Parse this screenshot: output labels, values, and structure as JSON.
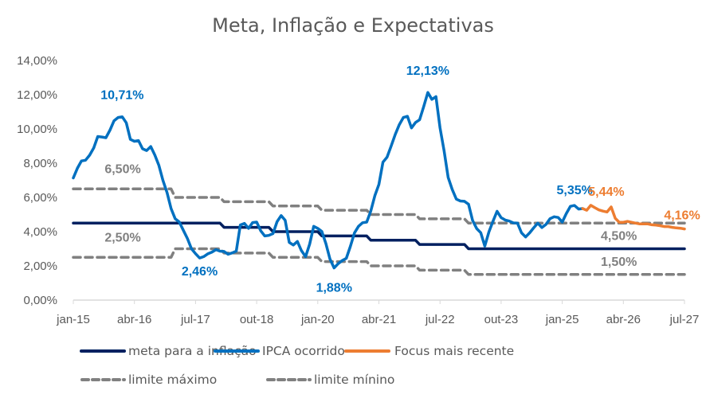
{
  "chart_data": {
    "type": "line",
    "title": "Meta, Inflação e Expectativas",
    "xlabel": "",
    "ylabel": "",
    "x_start": "jan-15",
    "x_end": "jul-27",
    "x_tick_labels": [
      "jan-15",
      "abr-16",
      "jul-17",
      "out-18",
      "jan-20",
      "abr-21",
      "jul-22",
      "out-23",
      "jan-25",
      "abr-26",
      "jul-27"
    ],
    "x_tick_months": [
      0,
      15,
      30,
      45,
      60,
      75,
      90,
      105,
      120,
      135,
      150
    ],
    "ylim": [
      0,
      14
    ],
    "y_tick_values": [
      0,
      2,
      4,
      6,
      8,
      10,
      12,
      14
    ],
    "y_tick_labels": [
      "0,00%",
      "2,00%",
      "4,00%",
      "6,00%",
      "8,00%",
      "10,00%",
      "12,00%",
      "14,00%"
    ],
    "grid": false,
    "legend_position": "bottom",
    "series": [
      {
        "name": "meta para a inflação",
        "color": "#002060",
        "style": "solid",
        "points": [
          [
            0,
            4.5
          ],
          [
            36,
            4.5
          ],
          [
            37,
            4.25
          ],
          [
            48,
            4.25
          ],
          [
            49,
            4.0
          ],
          [
            60,
            4.0
          ],
          [
            61,
            3.75
          ],
          [
            72,
            3.75
          ],
          [
            73,
            3.5
          ],
          [
            84,
            3.5
          ],
          [
            85,
            3.25
          ],
          [
            96,
            3.25
          ],
          [
            97,
            3.0
          ],
          [
            150,
            3.0
          ]
        ]
      },
      {
        "name": "limite máximo",
        "color": "#808080",
        "style": "dashed",
        "points": [
          [
            0,
            6.5
          ],
          [
            24,
            6.5
          ],
          [
            25,
            6.0
          ],
          [
            36,
            6.0
          ],
          [
            37,
            5.75
          ],
          [
            48,
            5.75
          ],
          [
            49,
            5.5
          ],
          [
            60,
            5.5
          ],
          [
            61,
            5.25
          ],
          [
            72,
            5.25
          ],
          [
            73,
            5.0
          ],
          [
            84,
            5.0
          ],
          [
            85,
            4.75
          ],
          [
            96,
            4.75
          ],
          [
            97,
            4.5
          ],
          [
            150,
            4.5
          ]
        ]
      },
      {
        "name": "limite mínino",
        "color": "#808080",
        "style": "dashed",
        "points": [
          [
            0,
            2.5
          ],
          [
            24,
            2.5
          ],
          [
            25,
            3.0
          ],
          [
            36,
            3.0
          ],
          [
            37,
            2.75
          ],
          [
            48,
            2.75
          ],
          [
            49,
            2.5
          ],
          [
            60,
            2.5
          ],
          [
            61,
            2.25
          ],
          [
            72,
            2.25
          ],
          [
            73,
            2.0
          ],
          [
            84,
            2.0
          ],
          [
            85,
            1.75
          ],
          [
            96,
            1.75
          ],
          [
            97,
            1.5
          ],
          [
            150,
            1.5
          ]
        ]
      },
      {
        "name": "IPCA ocorrido",
        "color": "#0070C0",
        "style": "solid",
        "start_month": 0,
        "values": [
          7.14,
          7.7,
          8.13,
          8.17,
          8.47,
          8.89,
          9.56,
          9.53,
          9.49,
          9.93,
          10.48,
          10.67,
          10.71,
          10.36,
          9.39,
          9.28,
          9.32,
          8.84,
          8.74,
          8.97,
          8.48,
          7.87,
          6.99,
          6.29,
          5.35,
          4.76,
          4.57,
          4.08,
          3.6,
          3.0,
          2.71,
          2.46,
          2.54,
          2.7,
          2.8,
          2.95,
          2.86,
          2.84,
          2.68,
          2.76,
          2.86,
          4.39,
          4.48,
          4.19,
          4.53,
          4.56,
          4.05,
          3.75,
          3.78,
          3.89,
          4.58,
          4.94,
          4.66,
          3.37,
          3.22,
          3.43,
          2.89,
          2.54,
          3.27,
          4.31,
          4.19,
          4.01,
          3.3,
          2.4,
          1.88,
          2.13,
          2.31,
          2.44,
          3.14,
          3.92,
          4.31,
          4.52,
          4.56,
          5.2,
          6.1,
          6.76,
          8.06,
          8.35,
          8.99,
          9.68,
          10.25,
          10.67,
          10.74,
          10.06,
          10.38,
          10.54,
          11.3,
          12.13,
          11.73,
          11.89,
          10.07,
          8.73,
          7.17,
          6.47,
          5.9,
          5.79,
          5.77,
          5.6,
          4.65,
          4.18,
          3.94,
          3.16,
          3.99,
          4.61,
          5.19,
          4.82,
          4.68,
          4.62,
          4.51,
          4.5,
          3.93,
          3.69,
          3.93,
          4.23,
          4.5,
          4.24,
          4.42,
          4.76,
          4.87,
          4.83,
          4.56,
          5.06,
          5.48,
          5.53,
          5.32,
          5.35
        ]
      },
      {
        "name": "Focus mais recente",
        "color": "#ED7D31",
        "style": "solid",
        "start_month": 125,
        "values": [
          5.35,
          5.25,
          5.54,
          5.4,
          5.27,
          5.2,
          5.15,
          5.44,
          4.78,
          4.55,
          4.55,
          4.6,
          4.55,
          4.5,
          4.45,
          4.45,
          4.45,
          4.4,
          4.38,
          4.35,
          4.3,
          4.3,
          4.25,
          4.22,
          4.2,
          4.16
        ]
      }
    ],
    "annotations": [
      {
        "text": "10,71%",
        "series": "IPCA ocorrido",
        "color": "#0070C0",
        "month": 12,
        "value": 10.71,
        "placement": "above"
      },
      {
        "text": "2,46%",
        "series": "IPCA ocorrido",
        "color": "#0070C0",
        "month": 31,
        "value": 2.46,
        "placement": "below"
      },
      {
        "text": "1,88%",
        "series": "IPCA ocorrido",
        "color": "#0070C0",
        "month": 64,
        "value": 1.88,
        "placement": "below"
      },
      {
        "text": "12,13%",
        "series": "IPCA ocorrido",
        "color": "#0070C0",
        "month": 87,
        "value": 12.13,
        "placement": "above"
      },
      {
        "text": "5,35%",
        "series": "IPCA ocorrido",
        "color": "#0070C0",
        "month": 125,
        "value": 5.35,
        "placement": "above"
      },
      {
        "text": "5,44%",
        "series": "Focus mais recente",
        "color": "#ED7D31",
        "month": 132,
        "value": 5.44,
        "placement": "above"
      },
      {
        "text": "4,16%",
        "series": "Focus mais recente",
        "color": "#ED7D31",
        "month": 150,
        "value": 4.16,
        "placement": "above"
      },
      {
        "text": "6,50%",
        "series": "limite máximo",
        "color": "#808080",
        "month": 9,
        "value": 6.5,
        "placement": "above"
      },
      {
        "text": "2,50%",
        "series": "limite mínino",
        "color": "#808080",
        "month": 9,
        "value": 2.5,
        "placement": "above"
      },
      {
        "text": "4,50%",
        "series": "meta para a inflação",
        "color": "#808080",
        "month": 130,
        "value": 4.5,
        "placement": "below"
      },
      {
        "text": "1,50%",
        "series": "limite mínino",
        "color": "#808080",
        "month": 130,
        "value": 1.5,
        "placement": "above"
      }
    ],
    "legend": [
      {
        "label": "meta para a inflação",
        "color": "#002060",
        "style": "solid"
      },
      {
        "label": "IPCA ocorrido",
        "color": "#0070C0",
        "style": "solid"
      },
      {
        "label": "Focus mais recente",
        "color": "#ED7D31",
        "style": "solid"
      },
      {
        "label": "limite máximo",
        "color": "#808080",
        "style": "dashed"
      },
      {
        "label": "limite mínino",
        "color": "#808080",
        "style": "dashed"
      }
    ]
  }
}
